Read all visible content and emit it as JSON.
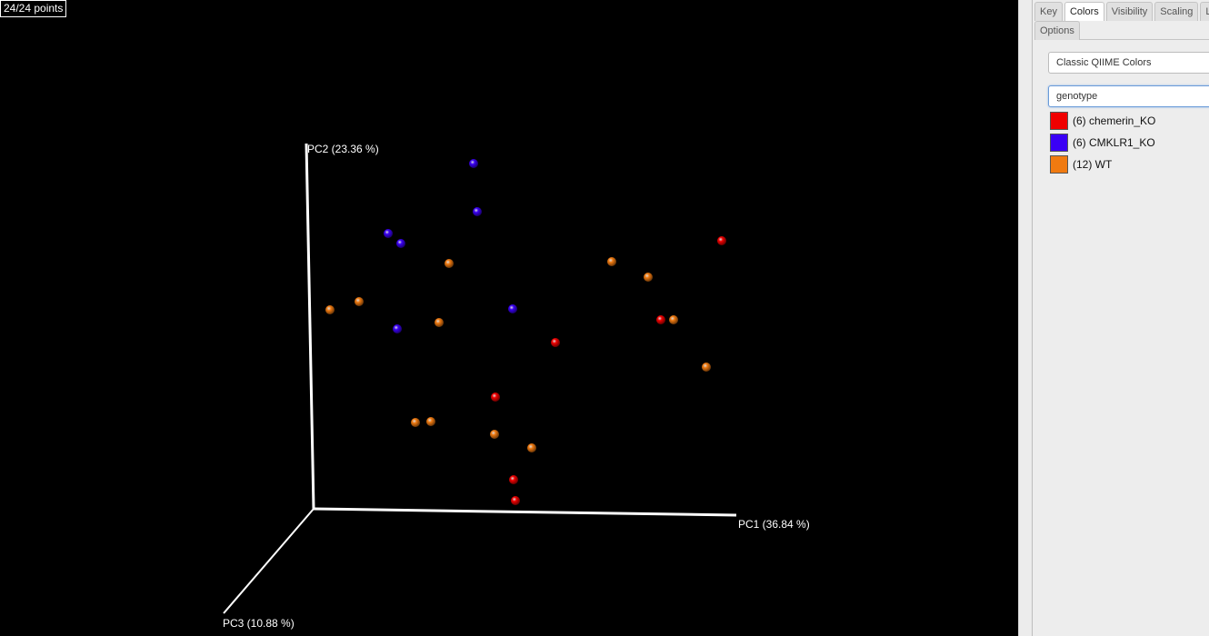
{
  "point_count_label": "24/24 points",
  "axes": {
    "pc1": "PC1 (36.84 %)",
    "pc2": "PC2 (23.36 %)",
    "pc3": "PC3 (10.88 %)"
  },
  "points": [
    {
      "group": "CMKLR1_KO",
      "color": "#3a00f5"
    },
    {
      "group": "CMKLR1_KO",
      "color": "#3a00f5"
    },
    {
      "group": "CMKLR1_KO",
      "color": "#3a00f5"
    },
    {
      "group": "CMKLR1_KO",
      "color": "#3a00f5"
    },
    {
      "group": "CMKLR1_KO",
      "color": "#3a00f5"
    },
    {
      "group": "CMKLR1_KO",
      "color": "#3a00f5"
    },
    {
      "group": "chemerin_KO",
      "color": "#f00000"
    },
    {
      "group": "chemerin_KO",
      "color": "#f00000"
    },
    {
      "group": "chemerin_KO",
      "color": "#f00000"
    },
    {
      "group": "chemerin_KO",
      "color": "#f00000"
    },
    {
      "group": "chemerin_KO",
      "color": "#f00000"
    },
    {
      "group": "chemerin_KO",
      "color": "#f00000"
    },
    {
      "group": "WT",
      "color": "#f07a10"
    },
    {
      "group": "WT",
      "color": "#f07a10"
    },
    {
      "group": "WT",
      "color": "#f07a10"
    },
    {
      "group": "WT",
      "color": "#f07a10"
    },
    {
      "group": "WT",
      "color": "#f07a10"
    },
    {
      "group": "WT",
      "color": "#f07a10"
    },
    {
      "group": "WT",
      "color": "#f07a10"
    },
    {
      "group": "WT",
      "color": "#f07a10"
    },
    {
      "group": "WT",
      "color": "#f07a10"
    },
    {
      "group": "WT",
      "color": "#f07a10"
    },
    {
      "group": "WT",
      "color": "#f07a10"
    },
    {
      "group": "WT",
      "color": "#f07a10"
    }
  ],
  "tabs": {
    "key": "Key",
    "colors": "Colors",
    "visibility": "Visibility",
    "scaling": "Scaling",
    "labels": "L",
    "options": "Options"
  },
  "color_scheme": "Classic QIIME Colors",
  "category": "genotype",
  "legend": [
    {
      "label": "(6) chemerin_KO",
      "color": "#f00000"
    },
    {
      "label": "(6) CMKLR1_KO",
      "color": "#3a00f5"
    },
    {
      "label": "(12) WT",
      "color": "#f07a10"
    }
  ]
}
